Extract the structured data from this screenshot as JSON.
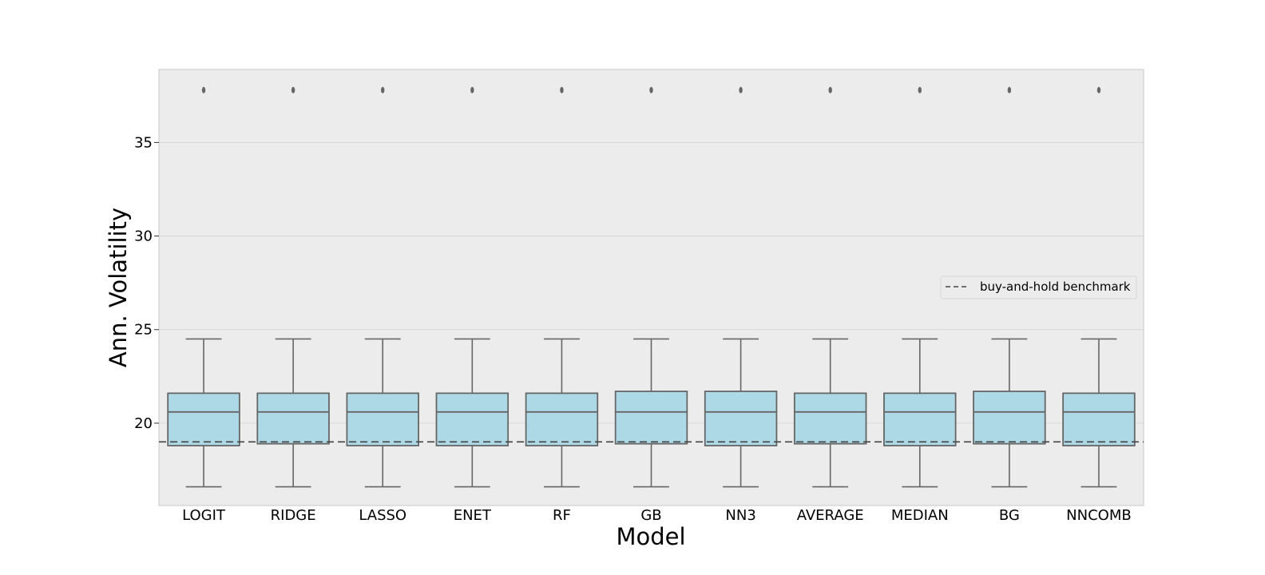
{
  "chart_data": {
    "type": "box",
    "title": "",
    "xlabel": "Model",
    "ylabel": "Ann. Volatility",
    "ylim": [
      15.6,
      38.9
    ],
    "yticks": [
      20,
      25,
      30,
      35
    ],
    "grid": "horizontal",
    "legend": {
      "placement": "right",
      "entries": [
        {
          "label": "buy-and-hold benchmark",
          "style": "dashed",
          "color": "#444444"
        }
      ]
    },
    "benchmark": 19.0,
    "box_color": "#add8e6",
    "edge_color": "#666666",
    "background": "#ececec",
    "categories": [
      "LOGIT",
      "RIDGE",
      "LASSO",
      "ENET",
      "RF",
      "GB",
      "NN3",
      "AVERAGE",
      "MEDIAN",
      "BG",
      "NNCOMB"
    ],
    "boxes": [
      {
        "name": "LOGIT",
        "whisker_low": 16.6,
        "q1": 18.8,
        "median": 20.6,
        "q3": 21.6,
        "whisker_high": 24.5,
        "outliers": [
          37.8
        ]
      },
      {
        "name": "RIDGE",
        "whisker_low": 16.6,
        "q1": 18.9,
        "median": 20.6,
        "q3": 21.6,
        "whisker_high": 24.5,
        "outliers": [
          37.8
        ]
      },
      {
        "name": "LASSO",
        "whisker_low": 16.6,
        "q1": 18.8,
        "median": 20.6,
        "q3": 21.6,
        "whisker_high": 24.5,
        "outliers": [
          37.8
        ]
      },
      {
        "name": "ENET",
        "whisker_low": 16.6,
        "q1": 18.8,
        "median": 20.6,
        "q3": 21.6,
        "whisker_high": 24.5,
        "outliers": [
          37.8
        ]
      },
      {
        "name": "RF",
        "whisker_low": 16.6,
        "q1": 18.8,
        "median": 20.6,
        "q3": 21.6,
        "whisker_high": 24.5,
        "outliers": [
          37.8
        ]
      },
      {
        "name": "GB",
        "whisker_low": 16.6,
        "q1": 18.9,
        "median": 20.6,
        "q3": 21.7,
        "whisker_high": 24.5,
        "outliers": [
          37.8
        ]
      },
      {
        "name": "NN3",
        "whisker_low": 16.6,
        "q1": 18.8,
        "median": 20.6,
        "q3": 21.7,
        "whisker_high": 24.5,
        "outliers": [
          37.8
        ]
      },
      {
        "name": "AVERAGE",
        "whisker_low": 16.6,
        "q1": 18.9,
        "median": 20.6,
        "q3": 21.6,
        "whisker_high": 24.5,
        "outliers": [
          37.8
        ]
      },
      {
        "name": "MEDIAN",
        "whisker_low": 16.6,
        "q1": 18.8,
        "median": 20.6,
        "q3": 21.6,
        "whisker_high": 24.5,
        "outliers": [
          37.8
        ]
      },
      {
        "name": "BG",
        "whisker_low": 16.6,
        "q1": 18.9,
        "median": 20.6,
        "q3": 21.7,
        "whisker_high": 24.5,
        "outliers": [
          37.8
        ]
      },
      {
        "name": "NNCOMB",
        "whisker_low": 16.6,
        "q1": 18.8,
        "median": 20.6,
        "q3": 21.6,
        "whisker_high": 24.5,
        "outliers": [
          37.8
        ]
      }
    ]
  }
}
